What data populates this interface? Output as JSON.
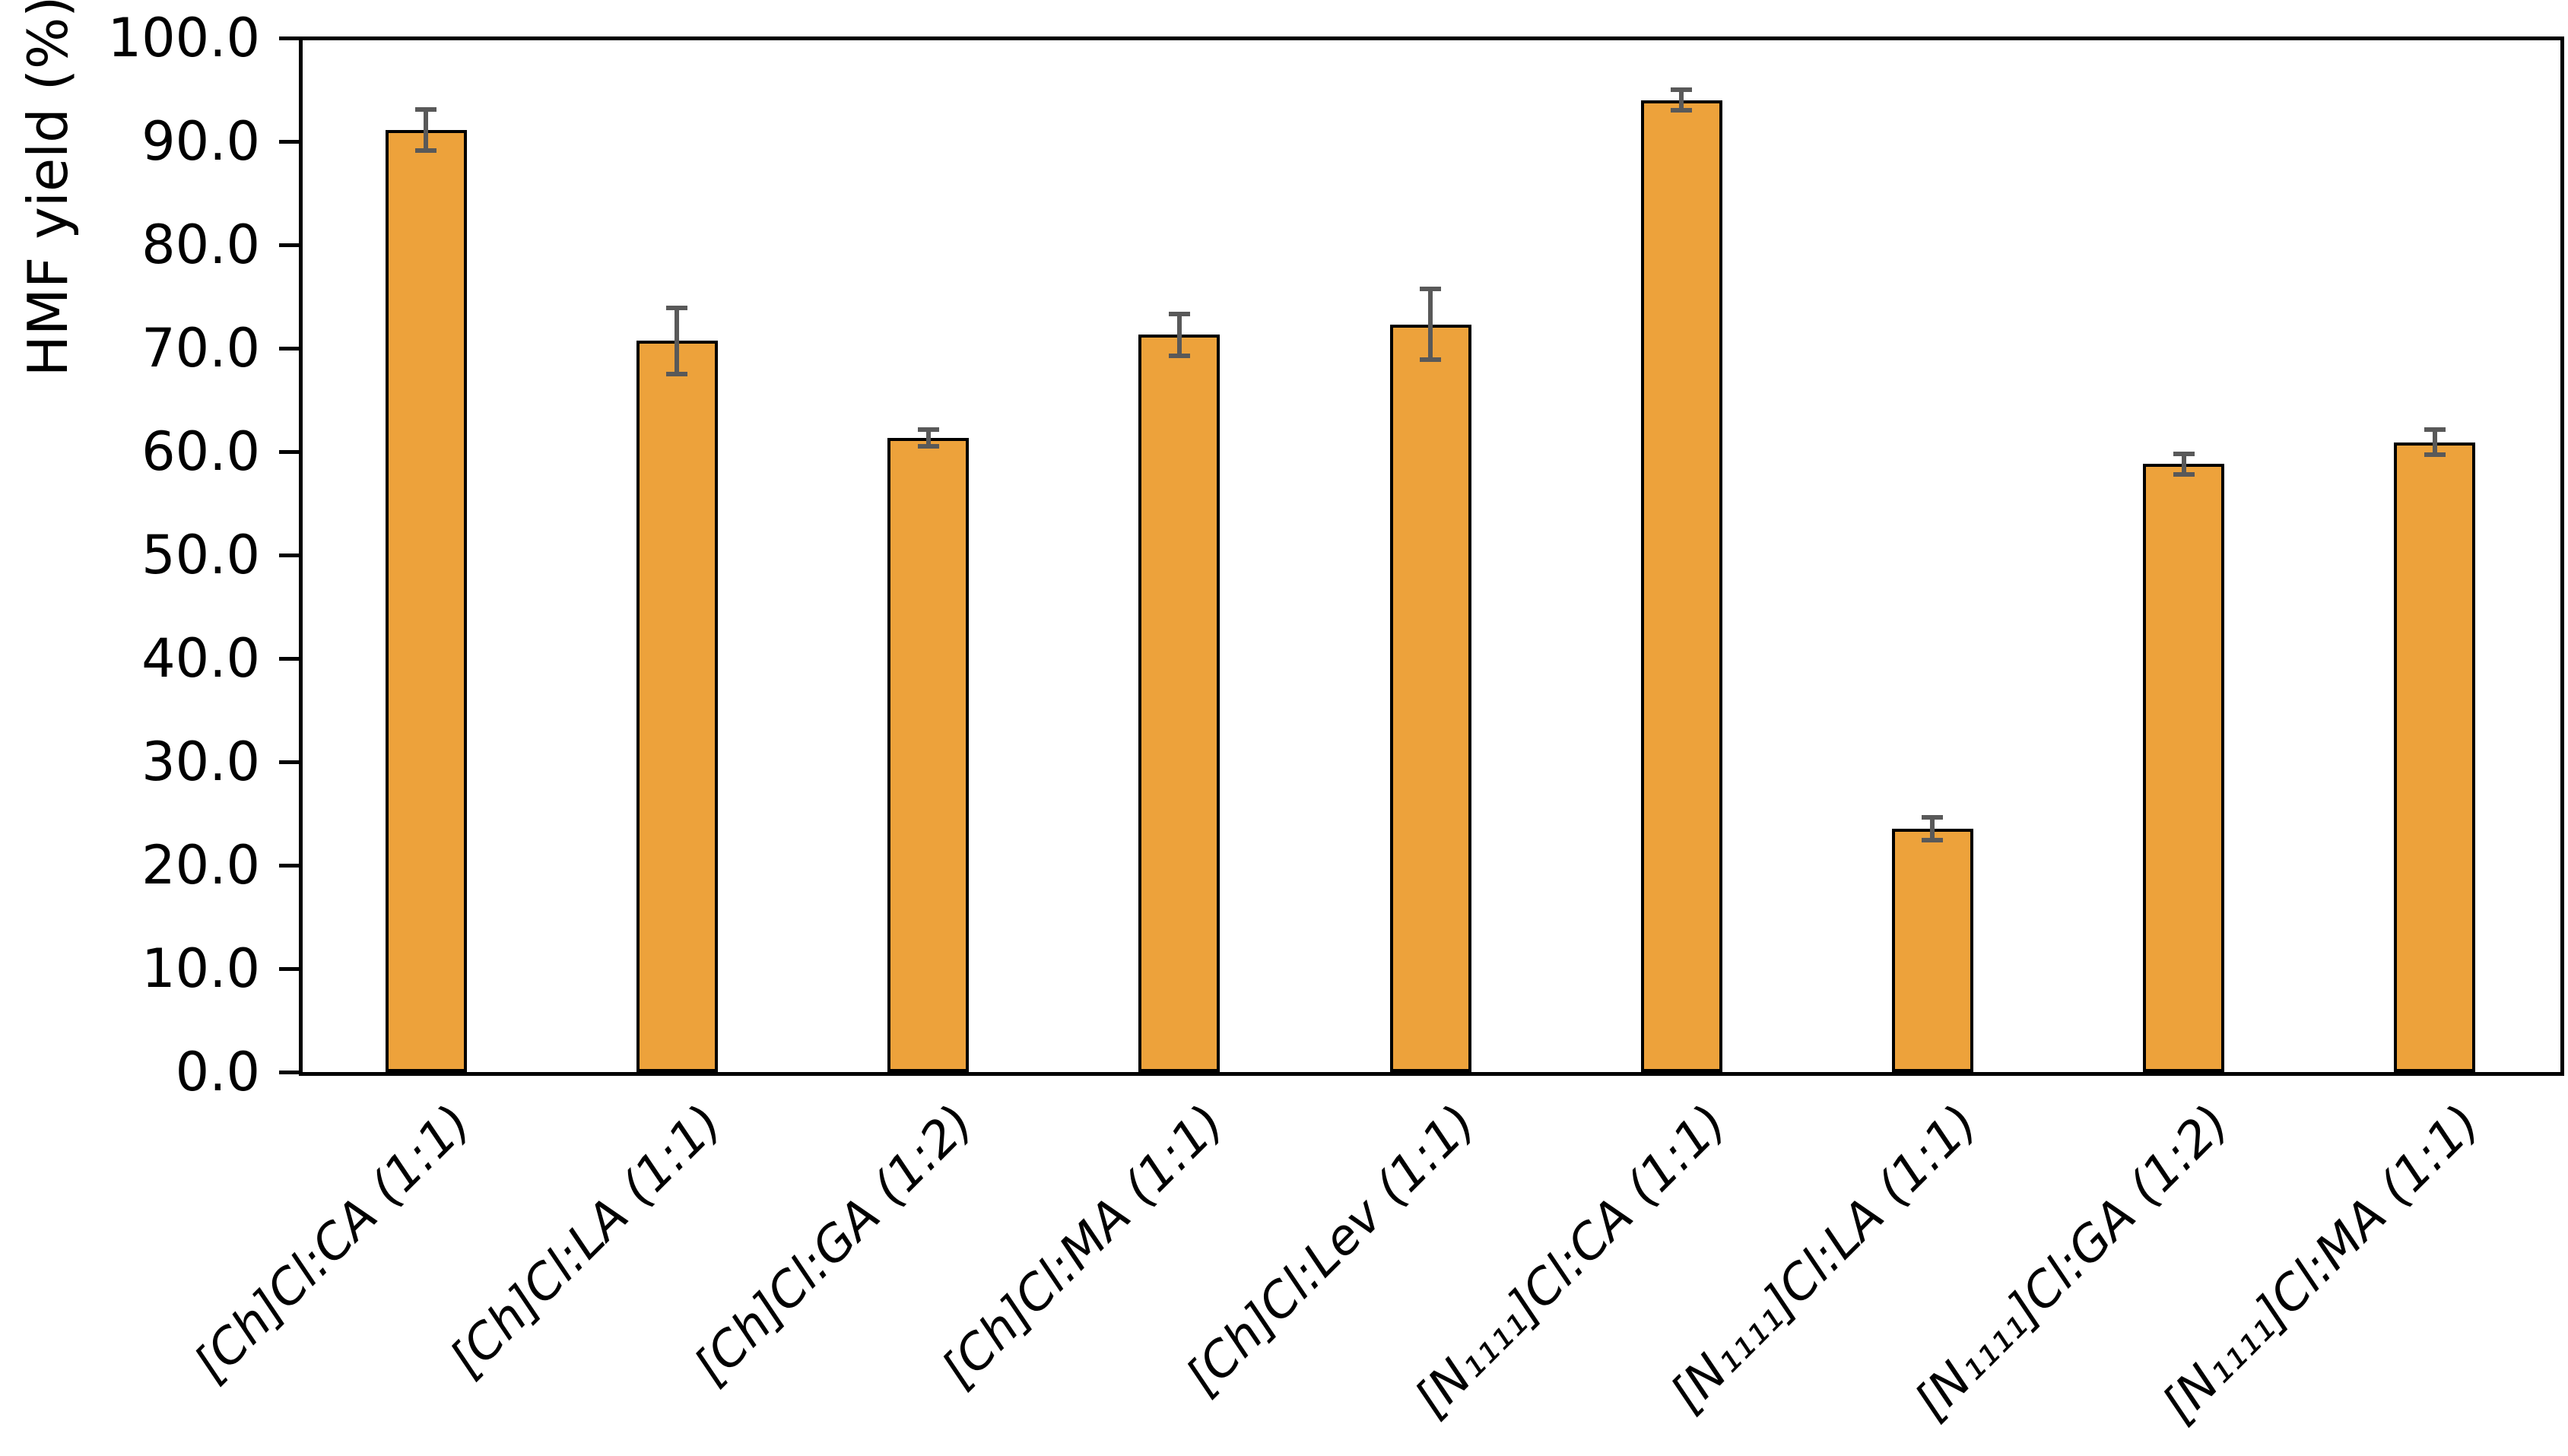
{
  "chart_data": {
    "type": "bar",
    "title": "",
    "ylabel": "HMF yield (%)",
    "xlabel": "",
    "ylim": [
      0,
      100
    ],
    "ytick_step": 10,
    "ytick_labels": [
      "0.0",
      "10.0",
      "20.0",
      "30.0",
      "40.0",
      "50.0",
      "60.0",
      "70.0",
      "80.0",
      "90.0",
      "100.0"
    ],
    "grid": false,
    "legend": false,
    "categories": [
      "[Ch]Cl:CA (1:1)",
      "[Ch]Cl:LA (1:1)",
      "[Ch]Cl:GA (1:2)",
      "[Ch]Cl:MA (1:1)",
      "[Ch]Cl:Lev (1:1)",
      "[N₁₁₁₁]Cl:CA (1:1)",
      "[N₁₁₁₁]Cl:LA (1:1)",
      "[N₁₁₁₁]Cl:GA (1:2)",
      "[N₁₁₁₁]Cl:MA (1:1)"
    ],
    "series": [
      {
        "name": "HMF yield (%)",
        "values": [
          91.1,
          70.7,
          61.3,
          71.3,
          72.3,
          94.0,
          23.5,
          58.8,
          60.9
        ],
        "errors": [
          2.0,
          3.2,
          0.8,
          2.0,
          3.4,
          1.0,
          1.1,
          1.0,
          1.2
        ]
      }
    ],
    "colors": {
      "bar_fill": "#EDA23B",
      "bar_border": "#000000",
      "error_bar": "#595959",
      "axis": "#000000",
      "text": "#000000",
      "background": "#FFFFFF"
    }
  }
}
